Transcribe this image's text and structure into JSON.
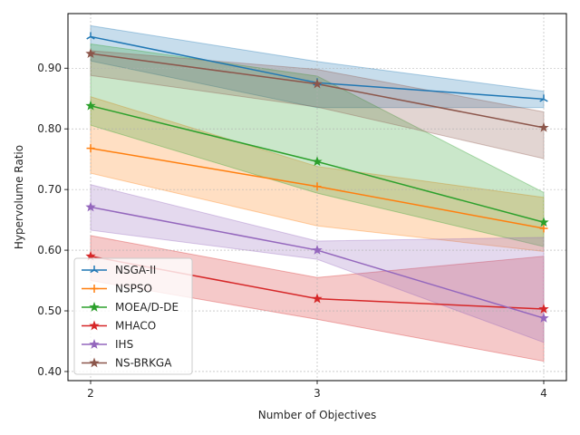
{
  "chart_data": {
    "type": "line",
    "title": "",
    "xlabel": "Number of Objectives",
    "ylabel": "Hypervolume Ratio",
    "x": [
      2,
      3,
      4
    ],
    "xlim": [
      1.9,
      4.1
    ],
    "ylim": [
      0.385,
      0.99
    ],
    "x_ticks": [
      "2",
      "3",
      "4"
    ],
    "y_ticks": [
      "0.40",
      "0.50",
      "0.60",
      "0.70",
      "0.80",
      "0.90"
    ],
    "y_tick_values": [
      0.4,
      0.5,
      0.6,
      0.7,
      0.8,
      0.9
    ],
    "grid": true,
    "legend_position": "lower-left",
    "series": [
      {
        "name": "NSGA-II",
        "color": "#1f77b4",
        "marker": "tri",
        "values": [
          0.952,
          0.876,
          0.849
        ],
        "lower": [
          0.912,
          0.835,
          0.835
        ],
        "upper": [
          0.97,
          0.911,
          0.862
        ]
      },
      {
        "name": "NSPSO",
        "color": "#ff7f0e",
        "marker": "plus",
        "values": [
          0.768,
          0.705,
          0.636
        ],
        "lower": [
          0.727,
          0.64,
          0.598
        ],
        "upper": [
          0.853,
          0.738,
          0.687
        ]
      },
      {
        "name": "MOEA/D-DE",
        "color": "#2ca02c",
        "marker": "star",
        "values": [
          0.838,
          0.746,
          0.646
        ],
        "lower": [
          0.806,
          0.694,
          0.606
        ],
        "upper": [
          0.94,
          0.887,
          0.695
        ]
      },
      {
        "name": "MHACO",
        "color": "#d62728",
        "marker": "star",
        "values": [
          0.59,
          0.52,
          0.503
        ],
        "lower": [
          0.55,
          0.486,
          0.417
        ],
        "upper": [
          0.624,
          0.555,
          0.59
        ]
      },
      {
        "name": "IHS",
        "color": "#9467bd",
        "marker": "star",
        "values": [
          0.671,
          0.6,
          0.488
        ],
        "lower": [
          0.633,
          0.585,
          0.448
        ],
        "upper": [
          0.708,
          0.615,
          0.621
        ]
      },
      {
        "name": "NS-BRKGA",
        "color": "#8c564b",
        "marker": "star",
        "values": [
          0.924,
          0.874,
          0.802
        ],
        "lower": [
          0.888,
          0.836,
          0.751
        ],
        "upper": [
          0.929,
          0.898,
          0.828
        ]
      }
    ]
  }
}
